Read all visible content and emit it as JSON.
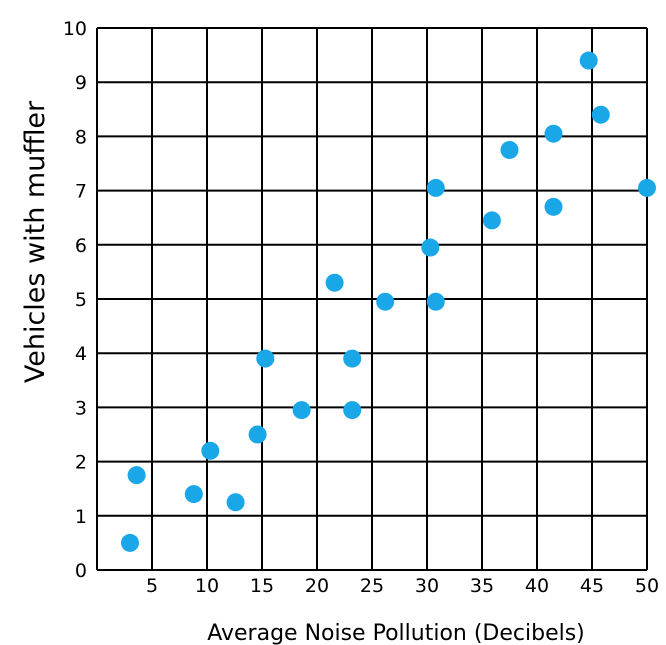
{
  "chart_data": {
    "type": "scatter",
    "title": "",
    "xlabel": "Average Noise Pollution (Decibels)",
    "ylabel": "Vehicles with muffler",
    "xlim": [
      0,
      50
    ],
    "ylim": [
      0,
      10
    ],
    "x_ticks": [
      5,
      10,
      15,
      20,
      25,
      30,
      35,
      40,
      45,
      50
    ],
    "y_ticks": [
      0,
      1,
      2,
      3,
      4,
      5,
      6,
      7,
      8,
      9,
      10
    ],
    "grid": true,
    "legend": "none",
    "point_color": "#1aa7e8",
    "points": [
      {
        "x": 3,
        "y": 0.5
      },
      {
        "x": 3.6,
        "y": 1.75
      },
      {
        "x": 8.8,
        "y": 1.4
      },
      {
        "x": 10.3,
        "y": 2.2
      },
      {
        "x": 12.6,
        "y": 1.25
      },
      {
        "x": 14.6,
        "y": 2.5
      },
      {
        "x": 15.3,
        "y": 3.9
      },
      {
        "x": 18.6,
        "y": 2.95
      },
      {
        "x": 21.6,
        "y": 5.3
      },
      {
        "x": 23.2,
        "y": 3.9
      },
      {
        "x": 23.2,
        "y": 2.95
      },
      {
        "x": 26.2,
        "y": 4.95
      },
      {
        "x": 30.3,
        "y": 5.95
      },
      {
        "x": 30.8,
        "y": 7.05
      },
      {
        "x": 30.8,
        "y": 4.95
      },
      {
        "x": 35.9,
        "y": 6.45
      },
      {
        "x": 37.5,
        "y": 7.75
      },
      {
        "x": 41.5,
        "y": 8.05
      },
      {
        "x": 41.5,
        "y": 6.7
      },
      {
        "x": 44.7,
        "y": 9.4
      },
      {
        "x": 45.8,
        "y": 8.4
      },
      {
        "x": 50,
        "y": 7.05
      }
    ]
  }
}
